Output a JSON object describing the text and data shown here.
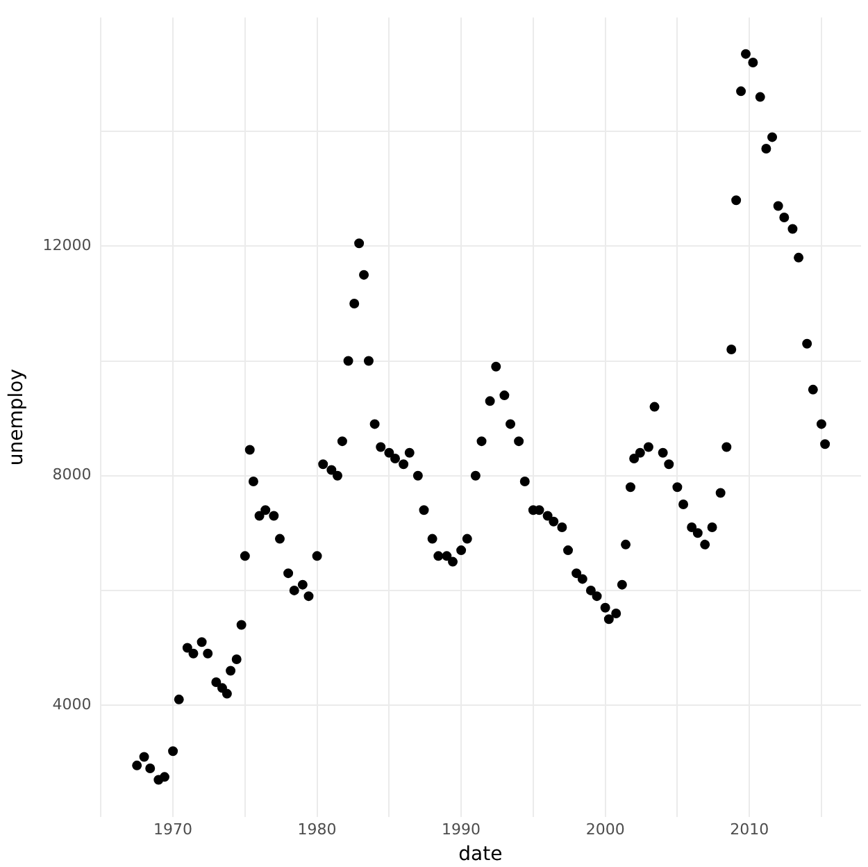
{
  "chart_data": {
    "type": "scatter",
    "xlabel": "date",
    "ylabel": "unemploy",
    "x": [
      "1967-07",
      "1968-01",
      "1968-06",
      "1969-01",
      "1969-06",
      "1970-01",
      "1970-06",
      "1971-01",
      "1971-06",
      "1972-01",
      "1972-06",
      "1973-01",
      "1973-06",
      "1973-10",
      "1974-01",
      "1974-06",
      "1974-10",
      "1975-01",
      "1975-05",
      "1975-08",
      "1976-01",
      "1976-06",
      "1977-01",
      "1977-06",
      "1978-01",
      "1978-06",
      "1979-01",
      "1979-06",
      "1980-01",
      "1980-06",
      "1981-01",
      "1981-06",
      "1981-10",
      "1982-03",
      "1982-08",
      "1982-12",
      "1983-04",
      "1983-08",
      "1984-01",
      "1984-06",
      "1985-01",
      "1985-06",
      "1986-01",
      "1986-06",
      "1987-01",
      "1987-06",
      "1988-01",
      "1988-06",
      "1989-01",
      "1989-06",
      "1990-01",
      "1990-06",
      "1991-01",
      "1991-06",
      "1992-01",
      "1992-06",
      "1993-01",
      "1993-06",
      "1994-01",
      "1994-06",
      "1995-01",
      "1995-06",
      "1996-01",
      "1996-06",
      "1997-01",
      "1997-06",
      "1998-01",
      "1998-06",
      "1999-01",
      "1999-06",
      "2000-01",
      "2000-04",
      "2000-10",
      "2001-03",
      "2001-06",
      "2001-10",
      "2002-01",
      "2002-06",
      "2003-01",
      "2003-06",
      "2004-01",
      "2004-06",
      "2005-01",
      "2005-06",
      "2006-01",
      "2006-06",
      "2006-12",
      "2007-06",
      "2008-01",
      "2008-06",
      "2008-10",
      "2009-02",
      "2009-06",
      "2009-10",
      "2010-04",
      "2010-10",
      "2011-03",
      "2011-08",
      "2012-01",
      "2012-06",
      "2013-01",
      "2013-06",
      "2014-01",
      "2014-06",
      "2015-01",
      "2015-04"
    ],
    "values": [
      2950,
      3100,
      2900,
      2700,
      2750,
      3200,
      4100,
      5000,
      4900,
      5100,
      4900,
      4400,
      4300,
      4200,
      4600,
      4800,
      5400,
      6600,
      8450,
      7900,
      7300,
      7400,
      7300,
      6900,
      6300,
      6000,
      6100,
      5900,
      6600,
      8200,
      8100,
      8000,
      8600,
      10000,
      11000,
      12050,
      11500,
      10000,
      8900,
      8500,
      8400,
      8300,
      8200,
      8400,
      8000,
      7400,
      6900,
      6600,
      6600,
      6500,
      6700,
      6900,
      8000,
      8600,
      9300,
      9900,
      9400,
      8900,
      8600,
      7900,
      7400,
      7400,
      7300,
      7200,
      7100,
      6700,
      6300,
      6200,
      6000,
      5900,
      5700,
      5500,
      5600,
      6100,
      6800,
      7800,
      8300,
      8400,
      8500,
      9200,
      8400,
      8200,
      7800,
      7500,
      7100,
      7000,
      6800,
      7100,
      7700,
      8500,
      10200,
      12800,
      14700,
      15350,
      15200,
      14600,
      13700,
      13900,
      12700,
      12500,
      12300,
      11800,
      10300,
      9500,
      8900,
      8550
    ],
    "color": "#000000",
    "marker": "circle",
    "xlim": [
      "1964-12",
      "2017-10"
    ],
    "xticks": [
      {
        "value": "1965",
        "label": null
      },
      "1970",
      {
        "value": "1975",
        "label": null
      },
      "1980",
      {
        "value": "1985",
        "label": null
      },
      "1990",
      {
        "value": "1995",
        "label": null
      },
      "2000",
      {
        "value": "2005",
        "label": null
      },
      "2010",
      {
        "value": "2015",
        "label": null
      }
    ],
    "ylim": [
      2052,
      15985
    ],
    "yticks": [
      4000,
      {
        "value": 6000,
        "label": null
      },
      8000,
      {
        "value": 10000,
        "label": null
      },
      12000,
      {
        "value": 14000,
        "label": null
      }
    ],
    "grid": true,
    "legend": false
  }
}
